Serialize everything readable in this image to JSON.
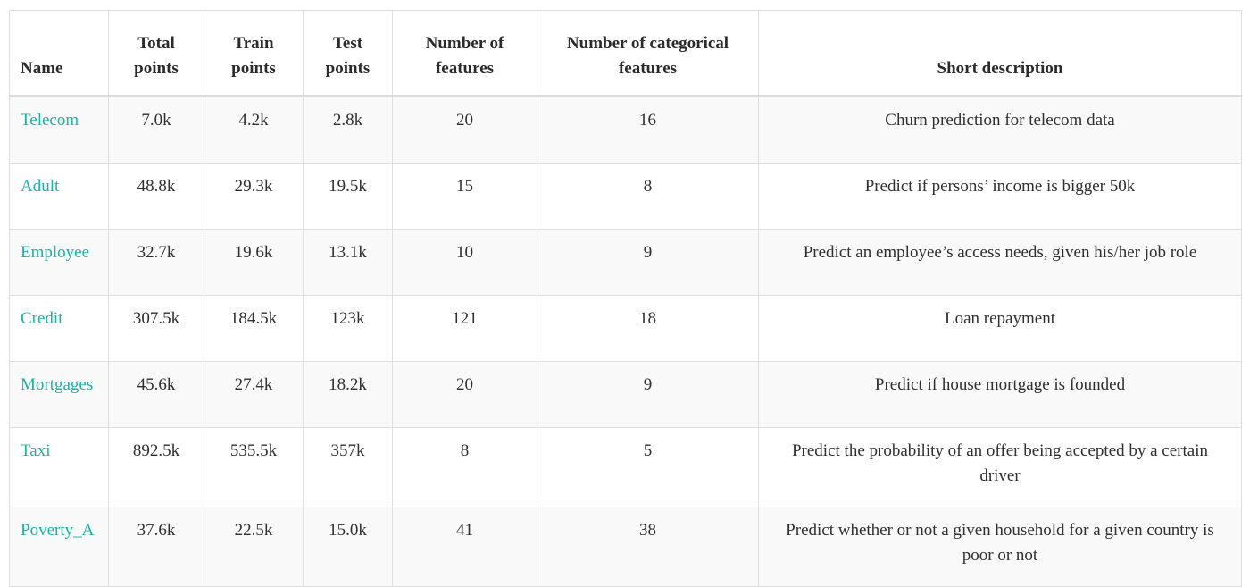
{
  "table": {
    "headers": [
      "Name",
      "Total points",
      "Train points",
      "Test points",
      "Number of features",
      "Number of categorical features",
      "Short description"
    ],
    "rows": [
      {
        "name": "Telecom",
        "total": "7.0k",
        "train": "4.2k",
        "test": "2.8k",
        "features": "20",
        "categorical": "16",
        "description": "Churn prediction for telecom data"
      },
      {
        "name": "Adult",
        "total": "48.8k",
        "train": "29.3k",
        "test": "19.5k",
        "features": "15",
        "categorical": "8",
        "description": "Predict if persons’ income is bigger 50k"
      },
      {
        "name": "Employee",
        "total": "32.7k",
        "train": "19.6k",
        "test": "13.1k",
        "features": "10",
        "categorical": "9",
        "description": "Predict an employee’s access needs, given his/her job role"
      },
      {
        "name": "Credit",
        "total": "307.5k",
        "train": "184.5k",
        "test": "123k",
        "features": "121",
        "categorical": "18",
        "description": "Loan repayment"
      },
      {
        "name": "Mortgages",
        "total": "45.6k",
        "train": "27.4k",
        "test": "18.2k",
        "features": "20",
        "categorical": "9",
        "description": "Predict if house mortgage is founded"
      },
      {
        "name": "Taxi",
        "total": "892.5k",
        "train": "535.5k",
        "test": "357k",
        "features": "8",
        "categorical": "5",
        "description": "Predict the probability of an offer being accepted by a certain driver"
      },
      {
        "name": "Poverty_A",
        "total": "37.6k",
        "train": "22.5k",
        "test": "15.0k",
        "features": "41",
        "categorical": "38",
        "description": "Predict whether or not a given household for a given country is poor or not"
      }
    ]
  },
  "colors": {
    "link": "#1ab3a4",
    "border": "#dedede",
    "stripe": "#f9f9f9"
  }
}
